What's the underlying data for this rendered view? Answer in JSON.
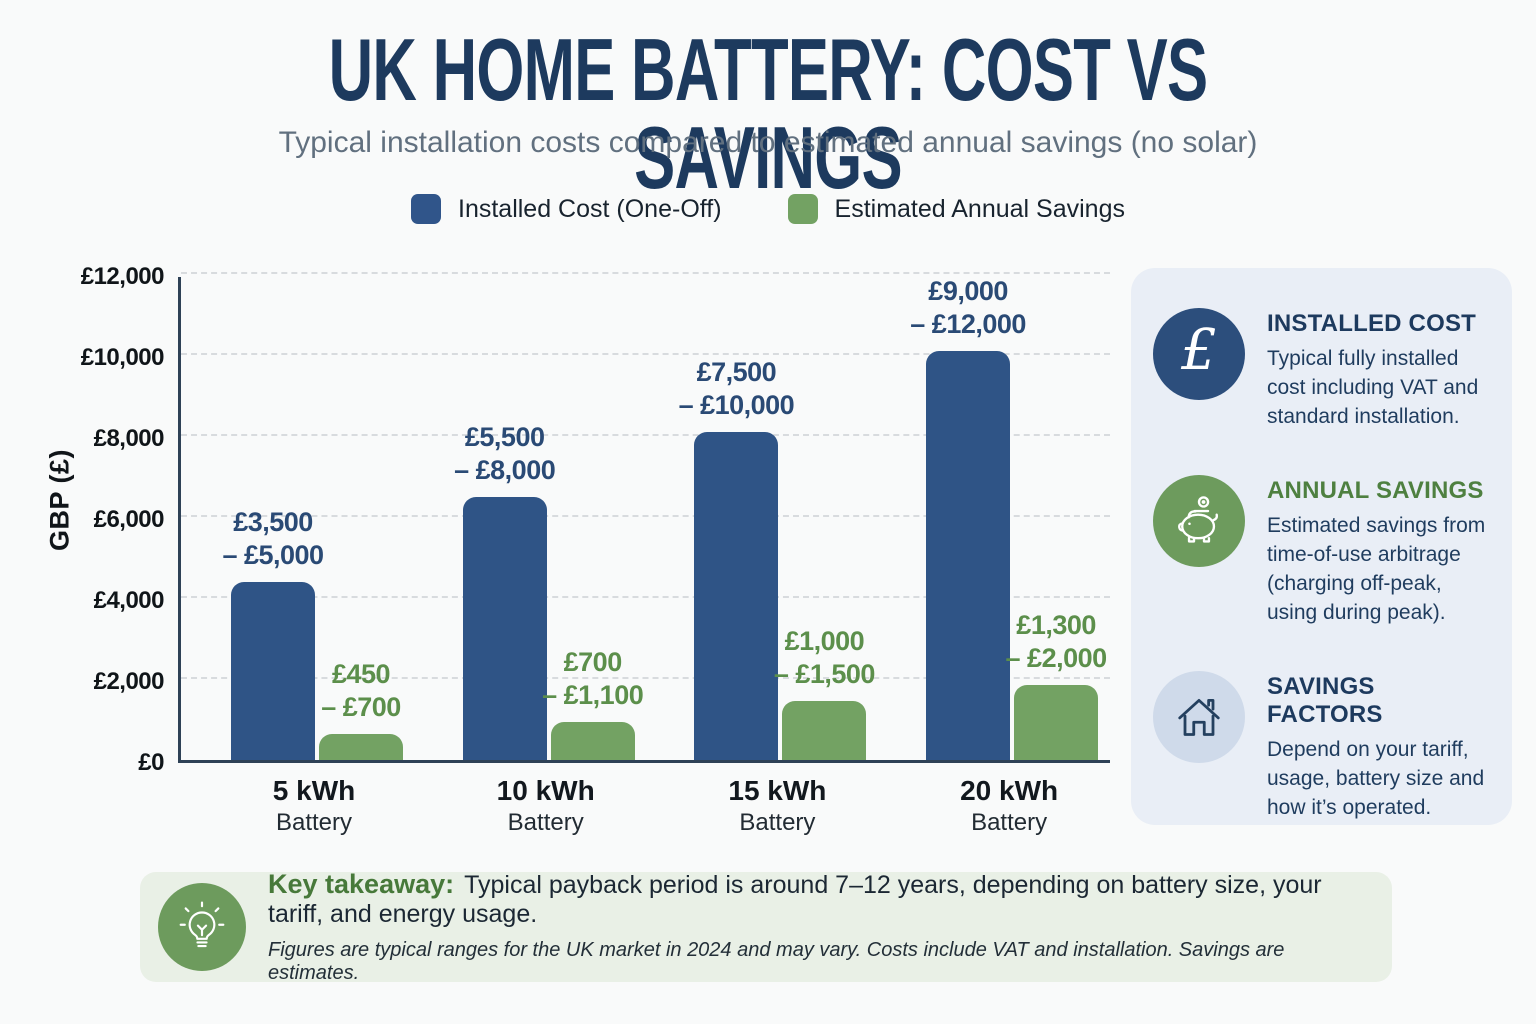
{
  "page": {
    "title": "UK HOME BATTERY: COST VS SAVINGS",
    "subtitle": "Typical installation costs compared to estimated annual savings (no solar)"
  },
  "legend": [
    {
      "label": "Installed Cost (One-Off)",
      "color": "#30558a"
    },
    {
      "label": "Estimated Annual Savings",
      "color": "#73a263"
    }
  ],
  "chart_data": {
    "type": "bar",
    "title": "UK Home Battery: Cost vs Savings",
    "xlabel": "",
    "ylabel": "GBP (£)",
    "ylim": [
      0,
      12000
    ],
    "ytick_step": 2000,
    "yticks": [
      "£12,000",
      "£10,000",
      "£8,000",
      "£6,000",
      "£4,000",
      "£2,000",
      "£0"
    ],
    "grid": "horizontal-dashed",
    "legend_position": "top",
    "categories": [
      "5 kWh",
      "10 kWh",
      "15 kWh",
      "20 kWh"
    ],
    "category_subtitle": "Battery",
    "series": [
      {
        "name": "Installed Cost (One-Off)",
        "color": "#2f5486",
        "values": [
          4400,
          6500,
          8100,
          10100
        ],
        "range_low": [
          3500,
          5500,
          7500,
          9000
        ],
        "range_high": [
          5000,
          8000,
          10000,
          12000
        ],
        "range_labels": [
          [
            "£3,500",
            "– £5,000"
          ],
          [
            "£5,500",
            "– £8,000"
          ],
          [
            "£7,500",
            "– £10,000"
          ],
          [
            "£9,000",
            "– £12,000"
          ]
        ]
      },
      {
        "name": "Estimated Annual Savings",
        "color": "#73a263",
        "values": [
          640,
          950,
          1450,
          1850
        ],
        "range_low": [
          450,
          700,
          1000,
          1300
        ],
        "range_high": [
          700,
          1100,
          1500,
          2000
        ],
        "range_labels": [
          [
            "£450",
            "– £700"
          ],
          [
            "£700",
            "– £1,100"
          ],
          [
            "£1,000",
            "– £1,500"
          ],
          [
            "£1,300",
            "– £2,000"
          ]
        ]
      }
    ]
  },
  "sidebar": {
    "items": [
      {
        "icon": "pound-icon",
        "title": "INSTALLED COST",
        "text": "Typical fully installed cost including VAT and standard installation."
      },
      {
        "icon": "piggy-bank-icon",
        "title": "ANNUAL SAVINGS",
        "text": "Estimated savings from time-of-use arbitrage (charging off-peak, using during peak)."
      },
      {
        "icon": "house-icon",
        "title": "SAVINGS FACTORS",
        "text": "Depend on your tariff, usage, battery size and how it’s operated."
      }
    ]
  },
  "footer": {
    "label": "Key takeaway:",
    "text": "Typical payback period is around 7–12 years, depending on battery size, your tariff, and energy usage.",
    "note": "Figures are typical ranges for the UK market in 2024 and may vary. Costs include VAT and installation. Savings are estimates."
  },
  "colors": {
    "page_background": "#f9fafa",
    "title": "#1d3a5e",
    "subtitle": "#61707f",
    "cost_bar": "#2f5486",
    "savings_bar": "#73a263",
    "cost_label": "#2a4a75",
    "savings_label": "#5c8f4b",
    "axis": "#2e4156",
    "gridline": "#d8dbde",
    "sidebar_background": "#e9eef6",
    "footer_background": "#e9f0e6",
    "green_accent": "#47793a"
  }
}
